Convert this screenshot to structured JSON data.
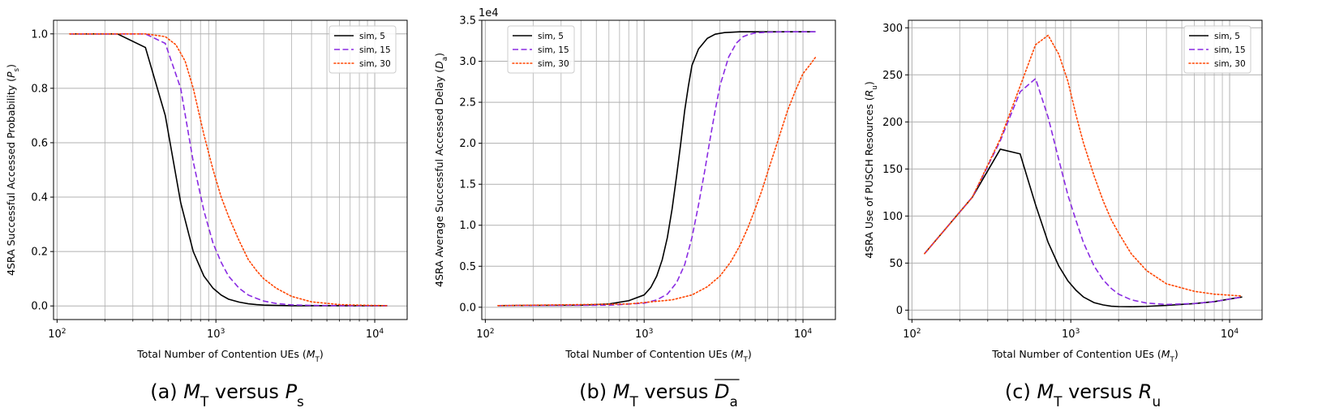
{
  "chart_data": [
    {
      "type": "line",
      "caption": "(a) M_T versus P_s",
      "xlabel": "Total Number of Contention UEs (M_T)",
      "ylabel": "4SRA Successful Accessed Probability (P_s)",
      "xscale": "log",
      "xlim": [
        95,
        16000
      ],
      "ylim": [
        -0.05,
        1.05
      ],
      "yticks": [
        0.0,
        0.2,
        0.4,
        0.6,
        0.8,
        1.0
      ],
      "ytick_labels": [
        "0.0",
        "0.2",
        "0.4",
        "0.6",
        "0.8",
        "1.0"
      ],
      "xtick_labels": [
        "10^2",
        "10^3",
        "10^4"
      ],
      "y_multiplier": "",
      "grid": true,
      "legend": "top-right",
      "series": [
        {
          "name": "sim, 5",
          "color": "#000000",
          "dash": "solid",
          "x": [
            120,
            240,
            360,
            480,
            600,
            720,
            840,
            960,
            1080,
            1200,
            1400,
            1600,
            1800,
            2000,
            2400,
            3000,
            4000,
            6000,
            12000
          ],
          "y": [
            1.0,
            1.0,
            0.95,
            0.7,
            0.38,
            0.2,
            0.11,
            0.065,
            0.04,
            0.025,
            0.014,
            0.008,
            0.005,
            0.003,
            0.002,
            0.001,
            0.001,
            0.001,
            0.001
          ]
        },
        {
          "name": "sim, 15",
          "color": "#8a2be2",
          "dash": "dashed",
          "x": [
            120,
            240,
            360,
            480,
            600,
            720,
            840,
            960,
            1080,
            1200,
            1400,
            1600,
            1800,
            2000,
            2400,
            3000,
            4000,
            6000,
            12000
          ],
          "y": [
            1.0,
            1.0,
            1.0,
            0.965,
            0.8,
            0.53,
            0.35,
            0.23,
            0.16,
            0.11,
            0.065,
            0.04,
            0.028,
            0.018,
            0.009,
            0.004,
            0.002,
            0.001,
            0.001
          ]
        },
        {
          "name": "sim, 30",
          "color": "#ff4500",
          "dash": "dotted",
          "x": [
            120,
            240,
            360,
            480,
            560,
            640,
            720,
            840,
            960,
            1080,
            1200,
            1400,
            1600,
            1800,
            2000,
            2400,
            3000,
            4000,
            6000,
            8000,
            12000
          ],
          "y": [
            1.0,
            1.0,
            1.0,
            0.99,
            0.96,
            0.9,
            0.8,
            0.63,
            0.5,
            0.4,
            0.33,
            0.24,
            0.17,
            0.13,
            0.1,
            0.065,
            0.035,
            0.015,
            0.005,
            0.003,
            0.001
          ]
        }
      ]
    },
    {
      "type": "line",
      "caption": "(b) M_T versus D_a",
      "xlabel": "Total Number of Contention UEs (M_T)",
      "ylabel": "4SRA Average Successful Accessed Delay (D_a)",
      "xscale": "log",
      "xlim": [
        95,
        16000
      ],
      "ylim": [
        -0.15,
        3.5
      ],
      "yticks": [
        0.0,
        0.5,
        1.0,
        1.5,
        2.0,
        2.5,
        3.0,
        3.5
      ],
      "ytick_labels": [
        "0.0",
        "0.5",
        "1.0",
        "1.5",
        "2.0",
        "2.5",
        "3.0",
        "3.5"
      ],
      "xtick_labels": [
        "10^2",
        "10^3",
        "10^4"
      ],
      "y_multiplier": "1e4",
      "grid": true,
      "legend": "top-left",
      "series": [
        {
          "name": "sim, 5",
          "color": "#000000",
          "dash": "solid",
          "x": [
            120,
            400,
            600,
            800,
            1000,
            1100,
            1200,
            1300,
            1400,
            1500,
            1600,
            1700,
            1800,
            1900,
            2000,
            2200,
            2500,
            2800,
            3200,
            3600,
            4000,
            5000,
            7000,
            12000
          ],
          "y": [
            0.02,
            0.025,
            0.04,
            0.08,
            0.15,
            0.24,
            0.38,
            0.58,
            0.85,
            1.2,
            1.6,
            2.0,
            2.4,
            2.7,
            2.95,
            3.15,
            3.28,
            3.33,
            3.35,
            3.355,
            3.36,
            3.36,
            3.36,
            3.36
          ]
        },
        {
          "name": "sim, 15",
          "color": "#8a2be2",
          "dash": "dashed",
          "x": [
            120,
            600,
            1000,
            1200,
            1400,
            1600,
            1800,
            2000,
            2200,
            2400,
            2600,
            2800,
            3000,
            3400,
            3800,
            4200,
            4600,
            5000,
            6000,
            8000,
            12000
          ],
          "y": [
            0.02,
            0.025,
            0.05,
            0.09,
            0.16,
            0.3,
            0.52,
            0.85,
            1.25,
            1.65,
            2.05,
            2.4,
            2.7,
            3.05,
            3.22,
            3.3,
            3.33,
            3.345,
            3.355,
            3.36,
            3.36
          ]
        },
        {
          "name": "sim, 30",
          "color": "#ff4500",
          "dash": "dotted",
          "x": [
            120,
            800,
            1500,
            2000,
            2500,
            3000,
            3500,
            4000,
            4500,
            5000,
            5500,
            6000,
            7000,
            8000,
            9000,
            10000,
            11000,
            12000
          ],
          "y": [
            0.02,
            0.04,
            0.09,
            0.15,
            0.25,
            0.38,
            0.55,
            0.75,
            0.97,
            1.2,
            1.42,
            1.65,
            2.05,
            2.4,
            2.65,
            2.85,
            2.95,
            3.05
          ]
        }
      ]
    },
    {
      "type": "line",
      "caption": "(c) M_T versus R_u",
      "xlabel": "Total Number of Contention UEs (M_T)",
      "ylabel": "4SRA Use of PUSCH Resources (R_u)",
      "xscale": "log",
      "xlim": [
        95,
        16000
      ],
      "ylim": [
        -10,
        308
      ],
      "yticks": [
        0,
        50,
        100,
        150,
        200,
        250,
        300
      ],
      "ytick_labels": [
        "0",
        "50",
        "100",
        "150",
        "200",
        "250",
        "300"
      ],
      "xtick_labels": [
        "10^2",
        "10^3",
        "10^4"
      ],
      "y_multiplier": "",
      "grid": true,
      "legend": "top-right",
      "series": [
        {
          "name": "sim, 5",
          "color": "#000000",
          "dash": "solid",
          "x": [
            120,
            240,
            360,
            480,
            600,
            720,
            840,
            960,
            1080,
            1200,
            1400,
            1600,
            1800,
            2000,
            2400,
            3000,
            4000,
            6000,
            8000,
            12000
          ],
          "y": [
            60,
            120,
            171,
            166,
            112,
            72,
            47,
            31,
            21,
            14,
            8,
            5.5,
            4.2,
            3.8,
            3.6,
            4,
            5,
            7,
            9,
            14
          ]
        },
        {
          "name": "sim, 15",
          "color": "#8a2be2",
          "dash": "dashed",
          "x": [
            120,
            240,
            360,
            480,
            600,
            720,
            840,
            960,
            1080,
            1200,
            1400,
            1600,
            1800,
            2000,
            2400,
            3000,
            4000,
            6000,
            8000,
            12000
          ],
          "y": [
            60,
            120,
            180,
            232,
            246,
            205,
            160,
            122,
            95,
            72,
            47,
            32,
            23,
            17,
            11,
            7.5,
            6,
            7,
            9,
            14
          ]
        },
        {
          "name": "sim, 30",
          "color": "#ff4500",
          "dash": "dotted",
          "x": [
            120,
            240,
            360,
            480,
            600,
            720,
            840,
            960,
            1080,
            1200,
            1400,
            1600,
            1800,
            2000,
            2400,
            3000,
            4000,
            6000,
            8000,
            12000
          ],
          "y": [
            60,
            120,
            182,
            238,
            282,
            292,
            272,
            243,
            207,
            178,
            143,
            116,
            96,
            82,
            60,
            42,
            28,
            20,
            17,
            15
          ]
        }
      ]
    }
  ]
}
